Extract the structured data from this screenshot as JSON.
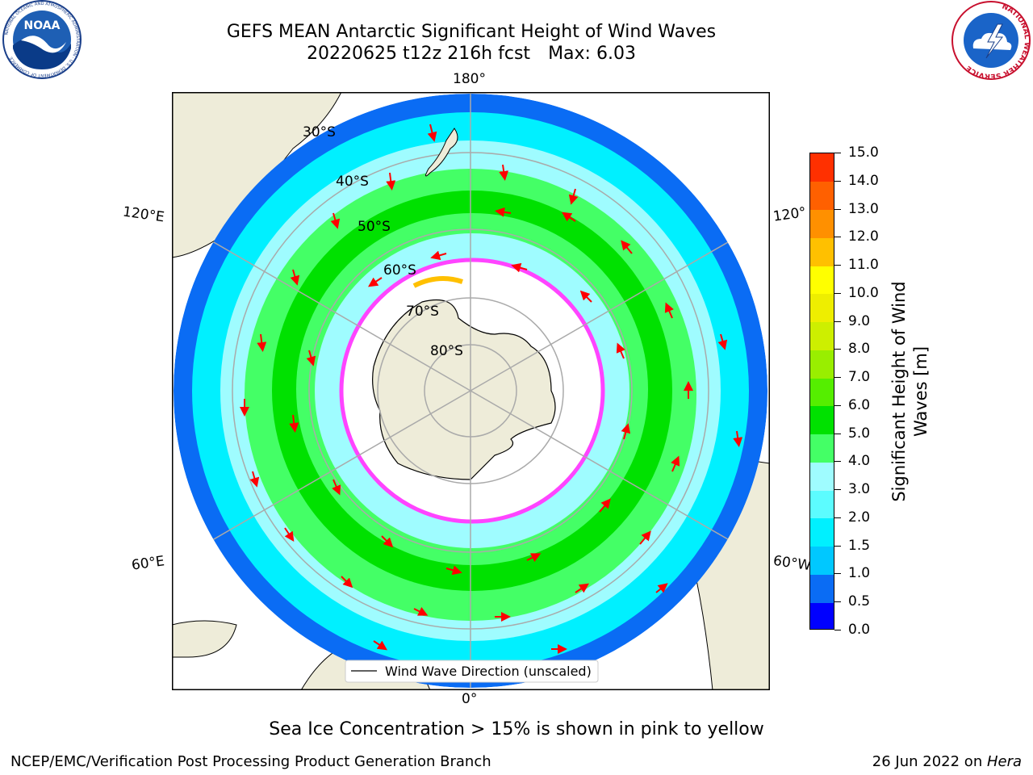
{
  "header": {
    "title_line1": "GEFS MEAN Antarctic Significant Height of Wind Waves",
    "run": "20220625 t12z 216h fcst",
    "max_text": "Max: 6.03"
  },
  "logos": {
    "noaa_text": "NOAA",
    "noaa_ring_text": "NATIONAL OCEANIC AND ATMOSPHERIC ADMINISTRATION · U.S. DEPARTMENT OF COMMERCE",
    "nws_ring_text": "NATIONAL WEATHER SERVICE"
  },
  "map": {
    "projection": "south polar stereographic",
    "lon_labels": {
      "top": "180°",
      "bottom": "0°",
      "left_upper": "120°E",
      "left_lower": "60°E",
      "right_upper": "120°",
      "right_lower": "60°W"
    },
    "lat_labels": [
      "30°S",
      "40°S",
      "50°S",
      "60°S",
      "70°S",
      "80°S"
    ],
    "legend_text": "Wind Wave Direction (unscaled)",
    "colors": {
      "land": "#eeecd9",
      "ocean_low": "#0a6cf4",
      "ocean_mid": "#00f0ff",
      "ocean_light": "#9ffcff",
      "wave_green": "#44ff66",
      "wave_deep_green": "#00e100",
      "arrow": "#ff0000",
      "ice_edge": "#ff44ff",
      "ice_yellow": "#ffc000"
    }
  },
  "colorbar": {
    "label_line1": "Significant Height of Wind",
    "label_line2": "Waves [m]",
    "ticks": [
      "0.0",
      "0.5",
      "1.0",
      "1.5",
      "2.0",
      "3.0",
      "4.0",
      "5.0",
      "6.0",
      "7.0",
      "8.0",
      "9.0",
      "10.0",
      "11.0",
      "12.0",
      "13.0",
      "14.0",
      "15.0"
    ],
    "colors": [
      "#0000ff",
      "#0a6cf4",
      "#00c8ff",
      "#00f0ff",
      "#5cfcff",
      "#9ffcff",
      "#44ff66",
      "#00e100",
      "#55ee00",
      "#99ee00",
      "#cdef00",
      "#eeee00",
      "#ffff00",
      "#ffc000",
      "#ff9000",
      "#ff6000",
      "#ff3000",
      "#ff0000"
    ]
  },
  "footer": {
    "ice_note": "Sea Ice Concentration > 15% is shown in pink to yellow",
    "left": "NCEP/EMC/Verification Post Processing Product Generation Branch",
    "date": "26 Jun 2022 on ",
    "machine": "Hera"
  }
}
